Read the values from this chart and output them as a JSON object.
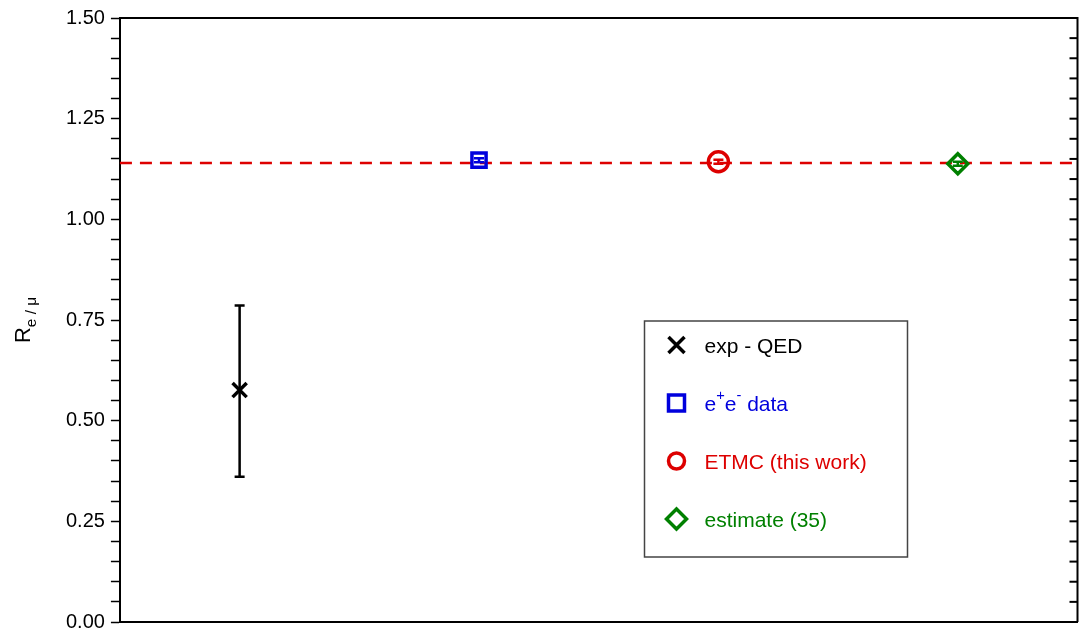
{
  "chart_data": {
    "type": "scatter",
    "ylabel": "R$_{e / μ}$",
    "categories": [
      null,
      null,
      null,
      null
    ],
    "ylim": [
      0,
      1.5
    ],
    "yticks": [
      {
        "value": 0,
        "label": "0.00"
      },
      {
        "value": 0.05,
        "label": null
      },
      {
        "value": 0.1,
        "label": null
      },
      {
        "value": 0.15,
        "label": null
      },
      {
        "value": 0.2,
        "label": null
      },
      {
        "value": 0.25,
        "label": "0.25"
      },
      {
        "value": 0.3,
        "label": null
      },
      {
        "value": 0.35,
        "label": null
      },
      {
        "value": 0.4,
        "label": null
      },
      {
        "value": 0.45,
        "label": null
      },
      {
        "value": 0.5,
        "label": "0.50"
      },
      {
        "value": 0.55,
        "label": null
      },
      {
        "value": 0.6,
        "label": null
      },
      {
        "value": 0.65,
        "label": null
      },
      {
        "value": 0.7,
        "label": null
      },
      {
        "value": 0.75,
        "label": "0.75"
      },
      {
        "value": 0.8,
        "label": null
      },
      {
        "value": 0.85,
        "label": null
      },
      {
        "value": 0.9,
        "label": null
      },
      {
        "value": 0.95,
        "label": null
      },
      {
        "value": 1,
        "label": "1.00"
      },
      {
        "value": 1.05,
        "label": null
      },
      {
        "value": 1.1,
        "label": null
      },
      {
        "value": 1.15,
        "label": null
      },
      {
        "value": 1.2,
        "label": null
      },
      {
        "value": 1.25,
        "label": "1.25"
      },
      {
        "value": 1.3,
        "label": null
      },
      {
        "value": 1.35,
        "label": null
      },
      {
        "value": 1.4,
        "label": null
      },
      {
        "value": 1.45,
        "label": null
      },
      {
        "value": 1.5,
        "label": "1.50"
      }
    ],
    "tick_labels": "y",
    "grid": false,
    "legend": "bottom right",
    "series": [
      {
        "name": "exp - QED",
        "color": "#000000",
        "marker": "cross",
        "values": [
          0.576,
          null,
          null,
          null
        ],
        "errors": [
          [
            0.361,
            0.786
          ],
          null,
          null,
          null
        ]
      },
      {
        "name": "e$^{+}$e$^{-}$ data",
        "color": "#0000dd",
        "marker": "square",
        "values": [
          null,
          1.147,
          null,
          null
        ],
        "errors": [
          null,
          0.005,
          null,
          null
        ]
      },
      {
        "name": "ETMC (this work)",
        "color": "#dd0000",
        "marker": "circle",
        "values": [
          null,
          null,
          1.143,
          null
        ],
        "errors": [
          null,
          null,
          0.005,
          null
        ]
      },
      {
        "name": "estimate (35)",
        "color": "#008000",
        "marker": "diamond",
        "values": [
          null,
          null,
          null,
          1.138
        ],
        "errors": [
          null,
          null,
          null,
          0.005
        ]
      }
    ],
    "ref_lines": [
      {
        "axis": "y",
        "value": 1.14,
        "color": "#dd0000",
        "line_style": "dashed"
      }
    ]
  }
}
